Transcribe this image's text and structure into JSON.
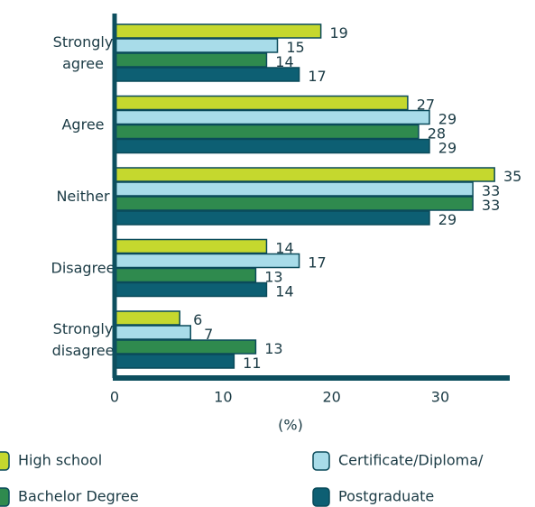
{
  "chart_data": {
    "type": "bar",
    "orientation": "horizontal",
    "categories": [
      "Strongly\nagree",
      "Agree",
      "Neither",
      "Disagree",
      "Strongly\ndisagree"
    ],
    "series": [
      {
        "name": "High school",
        "color": "#c5d82e",
        "values": [
          19,
          27,
          35,
          14,
          6
        ]
      },
      {
        "name": "Certificate/Diploma/",
        "color": "#a8dce9",
        "values": [
          15,
          29,
          33,
          17,
          7
        ]
      },
      {
        "name": "Bachelor Degree",
        "color": "#2f8a4e",
        "values": [
          14,
          28,
          33,
          13,
          13
        ]
      },
      {
        "name": "Postgraduate",
        "color": "#0d5f73",
        "values": [
          17,
          29,
          29,
          14,
          11
        ]
      }
    ],
    "xlabel": "(%)",
    "xlim": [
      0,
      36.4
    ],
    "xticks": [
      0,
      10,
      20,
      30
    ]
  }
}
